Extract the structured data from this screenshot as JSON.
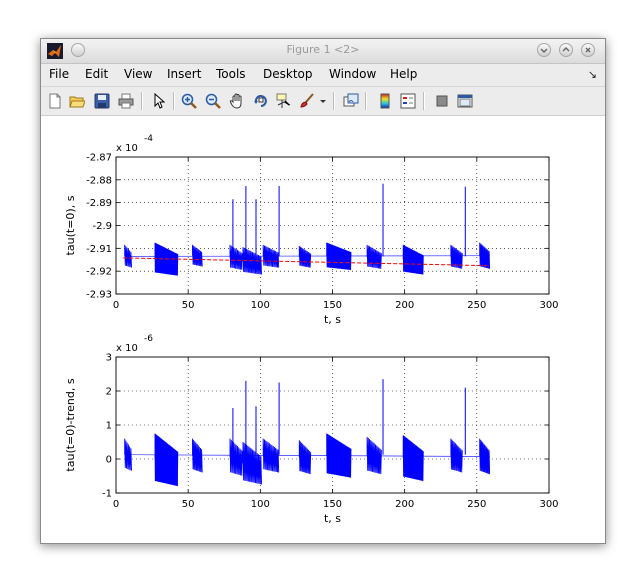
{
  "window": {
    "title": "Figure 1 <2>"
  },
  "menu": [
    "File",
    "Edit",
    "View",
    "Insert",
    "Tools",
    "Desktop",
    "Window",
    "Help"
  ],
  "toolbar": {
    "icons": [
      "new-figure-icon",
      "open-file-icon",
      "save-icon",
      "print-icon",
      "edit-plot-arrow-icon",
      "zoom-in-icon",
      "zoom-out-icon",
      "pan-hand-icon",
      "rotate-3d-icon",
      "data-cursor-icon",
      "brush-icon",
      "link-plot-icon",
      "colorbar-icon",
      "legend-icon",
      "hide-plot-tools-icon",
      "show-plot-tools-icon"
    ]
  },
  "chart_data": [
    {
      "type": "line",
      "xlabel": "t, s",
      "ylabel": "tau(t=0), s",
      "exponent_label": "x 10",
      "exponent_power": "-4",
      "xlim": [
        0,
        300
      ],
      "ylim": [
        -2.93,
        -2.87
      ],
      "xticks": [
        "0",
        "50",
        "100",
        "150",
        "200",
        "250",
        "300"
      ],
      "yticks": [
        "-2.87",
        "-2.88",
        "-2.89",
        "-2.9",
        "-2.91",
        "-2.92",
        "-2.93"
      ],
      "grid": true,
      "series_color": "#0000ff",
      "trend_color": "#ff0000",
      "trend": [
        [
          5,
          -2.9142
        ],
        [
          258,
          -2.9176
        ]
      ],
      "segments": [
        {
          "t0": 6,
          "t1": 11,
          "hi": -2.9085,
          "lo": -2.9185,
          "dense": 0.2
        },
        {
          "t0": 27,
          "t1": 43,
          "hi": -2.9075,
          "lo": -2.922,
          "dense": 0.7
        },
        {
          "t0": 53,
          "t1": 60,
          "hi": -2.9085,
          "lo": -2.918,
          "dense": 0.3
        },
        {
          "t0": 79,
          "t1": 88,
          "hi": -2.9085,
          "lo": -2.9195,
          "dense": 0.2
        },
        {
          "t0": 88,
          "t1": 101,
          "hi": -2.9095,
          "lo": -2.9215,
          "dense": 0.25
        },
        {
          "t0": 102,
          "t1": 113,
          "hi": -2.9085,
          "lo": -2.9185,
          "dense": 0.2
        },
        {
          "t0": 127,
          "t1": 135,
          "hi": -2.909,
          "lo": -2.9185,
          "dense": 0.3
        },
        {
          "t0": 146,
          "t1": 163,
          "hi": -2.9075,
          "lo": -2.9195,
          "dense": 0.7
        },
        {
          "t0": 174,
          "t1": 184,
          "hi": -2.9085,
          "lo": -2.919,
          "dense": 0.25
        },
        {
          "t0": 199,
          "t1": 213,
          "hi": -2.9085,
          "lo": -2.9215,
          "dense": 0.6
        },
        {
          "t0": 232,
          "t1": 240,
          "hi": -2.9085,
          "lo": -2.919,
          "dense": 0.3
        },
        {
          "t0": 252,
          "t1": 259,
          "hi": -2.9075,
          "lo": -2.919,
          "dense": 0.4
        }
      ],
      "spikes": [
        {
          "t": 81,
          "y": -2.8885
        },
        {
          "t": 90,
          "y": -2.8827
        },
        {
          "t": 97,
          "y": -2.8885
        },
        {
          "t": 113,
          "y": -2.8827
        },
        {
          "t": 185,
          "y": -2.8817
        },
        {
          "t": 242,
          "y": -2.883
        }
      ]
    },
    {
      "type": "line",
      "xlabel": "t, s",
      "ylabel": "tau(t=0)-trend, s",
      "exponent_label": "x 10",
      "exponent_power": "-6",
      "xlim": [
        0,
        300
      ],
      "ylim": [
        -1,
        3
      ],
      "xticks": [
        "0",
        "50",
        "100",
        "150",
        "200",
        "250",
        "300"
      ],
      "yticks": [
        "3",
        "2",
        "1",
        "0",
        "-1"
      ],
      "grid": true,
      "series_color": "#0000ff",
      "segments": [
        {
          "t0": 6,
          "t1": 11,
          "hi": 0.6,
          "lo": -0.35,
          "dense": 0.2
        },
        {
          "t0": 27,
          "t1": 43,
          "hi": 0.75,
          "lo": -0.8,
          "dense": 0.7
        },
        {
          "t0": 53,
          "t1": 60,
          "hi": 0.6,
          "lo": -0.4,
          "dense": 0.3
        },
        {
          "t0": 79,
          "t1": 88,
          "hi": 0.6,
          "lo": -0.5,
          "dense": 0.2
        },
        {
          "t0": 88,
          "t1": 101,
          "hi": 0.5,
          "lo": -0.75,
          "dense": 0.25
        },
        {
          "t0": 102,
          "t1": 113,
          "hi": 0.6,
          "lo": -0.4,
          "dense": 0.2
        },
        {
          "t0": 127,
          "t1": 135,
          "hi": 0.55,
          "lo": -0.45,
          "dense": 0.3
        },
        {
          "t0": 146,
          "t1": 163,
          "hi": 0.75,
          "lo": -0.55,
          "dense": 0.7
        },
        {
          "t0": 174,
          "t1": 184,
          "hi": 0.65,
          "lo": -0.45,
          "dense": 0.25
        },
        {
          "t0": 199,
          "t1": 213,
          "hi": 0.7,
          "lo": -0.65,
          "dense": 0.6
        },
        {
          "t0": 232,
          "t1": 240,
          "hi": 0.6,
          "lo": -0.4,
          "dense": 0.3
        },
        {
          "t0": 252,
          "t1": 259,
          "hi": 0.6,
          "lo": -0.45,
          "dense": 0.4
        }
      ],
      "spikes": [
        {
          "t": 81,
          "y": 1.5
        },
        {
          "t": 90,
          "y": 2.3
        },
        {
          "t": 97,
          "y": 1.55
        },
        {
          "t": 113,
          "y": 2.25
        },
        {
          "t": 185,
          "y": 2.35
        },
        {
          "t": 242,
          "y": 2.1
        }
      ]
    }
  ]
}
